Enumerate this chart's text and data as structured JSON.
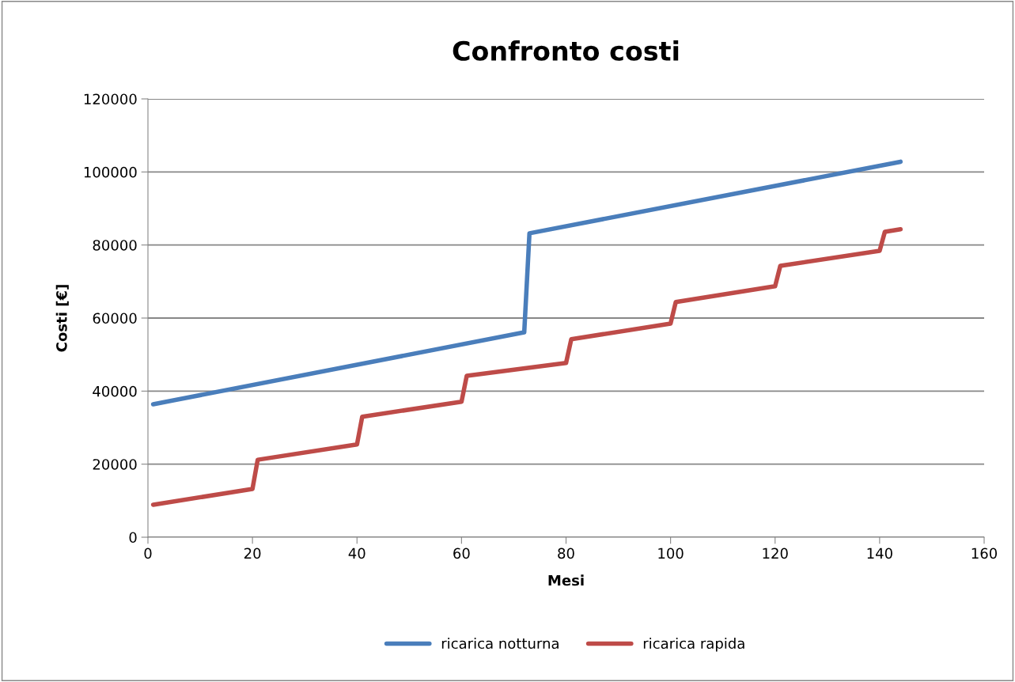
{
  "chart_data": {
    "type": "line",
    "title": "Confronto costi",
    "xlabel": "Mesi",
    "ylabel": "Costi [€]",
    "xlim": [
      0,
      160
    ],
    "xticks": [
      0,
      20,
      40,
      60,
      80,
      100,
      120,
      140,
      160
    ],
    "ylim": [
      0,
      120000
    ],
    "yticks": [
      0,
      20000,
      40000,
      60000,
      80000,
      100000,
      120000
    ],
    "grid": "y",
    "legend": "bottom",
    "marker": "none",
    "line_style": "solid",
    "series": [
      {
        "name": "ricarica notturna",
        "color": "#4a7ebb",
        "x": [
          1,
          72,
          73,
          144
        ],
        "values": [
          36400,
          56100,
          83200,
          102800
        ]
      },
      {
        "name": "ricarica rapida",
        "color": "#be4b48",
        "x": [
          1,
          20,
          21,
          40,
          41,
          60,
          61,
          80,
          81,
          100,
          101,
          120,
          121,
          140,
          141,
          144
        ],
        "values": [
          8900,
          13200,
          21200,
          25400,
          33000,
          37100,
          44200,
          47700,
          54200,
          58500,
          64400,
          68700,
          74300,
          78400,
          83600,
          84300
        ]
      }
    ]
  }
}
